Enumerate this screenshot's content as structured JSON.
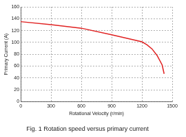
{
  "chart_data": {
    "type": "line",
    "title": "Fig. 1 Rotation speed versus primary current",
    "x_label": "Rotational Velocity (r/min)",
    "y_label": "Primary Current (A)",
    "x": [
      0,
      300,
      600,
      900,
      1200,
      1250,
      1300,
      1350,
      1400,
      1420
    ],
    "series": [
      {
        "color": "#e02020",
        "marker": "none",
        "line_style": "solid",
        "values": [
          135,
          130,
          124,
          113,
          101,
          96,
          89,
          78,
          62,
          47
        ]
      }
    ],
    "xlim": [
      0,
      1500
    ],
    "xticks": [
      0,
      300,
      600,
      900,
      1200,
      1500
    ],
    "ylim": [
      0,
      160
    ],
    "yticks": [
      0,
      20,
      40,
      60,
      80,
      100,
      120,
      140,
      160
    ],
    "grid": true
  }
}
